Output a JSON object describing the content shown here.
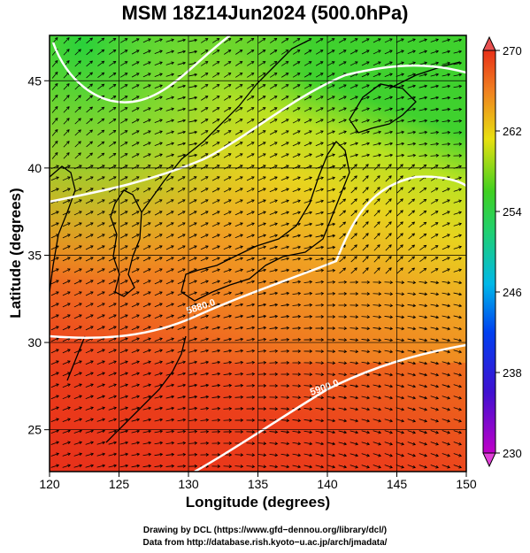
{
  "title": "MSM 18Z14Jun2024 (500.0hPa)",
  "xlabel": "Longitude (degrees)",
  "ylabel": "Latitude  (degrees)",
  "x_ticks": [
    "120",
    "125",
    "130",
    "135",
    "140",
    "145",
    "150"
  ],
  "y_ticks": [
    "25",
    "30",
    "35",
    "40",
    "45"
  ],
  "colorbar_ticks": [
    "230",
    "238",
    "246",
    "254",
    "262",
    "270"
  ],
  "contour_labels": [
    "5880.0",
    "5900.0"
  ],
  "credit_line1": "Drawing by DCL (https://www.gfd−dennou.org/library/dcl/)",
  "credit_line2": "Data from http://database.rish.kyoto−u.ac.jp/arch/jmadata/",
  "map_data": {
    "lon_range": [
      120,
      150
    ],
    "lat_range": [
      22.6,
      47.6
    ],
    "field": "temperature",
    "units_hint": "K",
    "colorbar_range": [
      230,
      270
    ],
    "contour_interval_m": 20
  },
  "colors": {
    "warm_red": "#e8301c",
    "orange": "#f08b1e",
    "yellow": "#e9e11a",
    "green": "#3fd12e",
    "contour": "#ffffff",
    "vectors": "#000000"
  }
}
